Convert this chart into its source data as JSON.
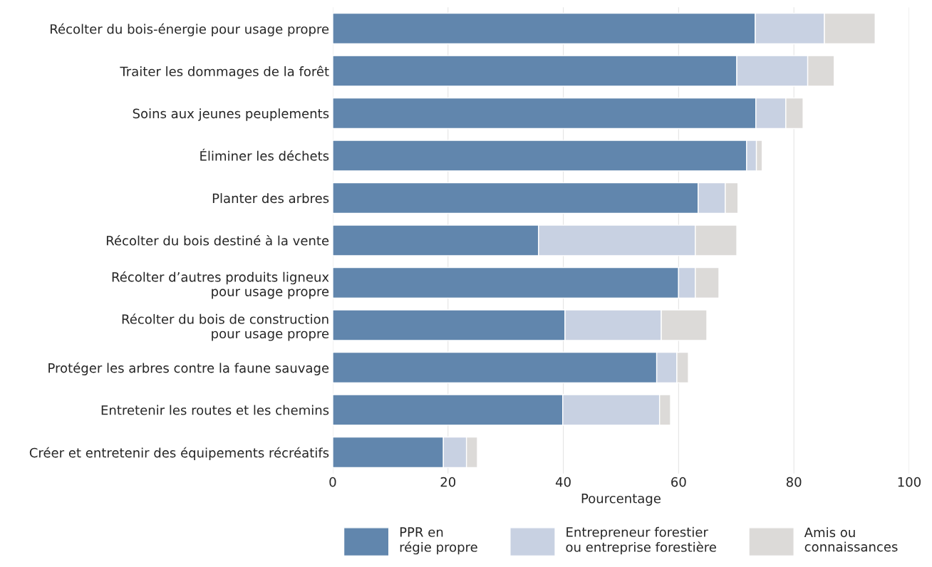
{
  "chart_data": {
    "type": "bar",
    "orientation": "horizontal",
    "stacked": true,
    "xlabel": "Pourcentage",
    "categories": [
      "Récolter du bois-énergie pour usage propre",
      "Traiter les dommages de la forêt",
      "Soins aux jeunes peuplements",
      "Éliminer les déchets",
      "Planter des arbres",
      "Récolter du bois destiné à la vente",
      "Récolter d’autres produits ligneux\npour usage propre",
      "Récolter du bois de construction\npour usage propre",
      "Protéger les arbres contre la faune sauvage",
      "Entretenir les routes et les chemins",
      "Créer et entretenir des équipements récréatifs"
    ],
    "series": [
      {
        "name": "PPR en\nrégie propre",
        "color": "#6186ad",
        "values": [
          73.3,
          70.1,
          73.4,
          71.8,
          63.4,
          35.7,
          60.0,
          40.3,
          56.2,
          39.9,
          19.2
        ]
      },
      {
        "name": "Entrepreneur forestier\nou entreprise forestière",
        "color": "#c8d1e2",
        "values": [
          12.0,
          12.3,
          5.2,
          1.7,
          4.7,
          27.2,
          2.9,
          16.7,
          3.5,
          16.8,
          4.0
        ]
      },
      {
        "name": "Amis ou\nconnaissances",
        "color": "#dcdad8",
        "values": [
          8.8,
          4.6,
          3.0,
          1.0,
          2.2,
          7.2,
          4.1,
          7.9,
          2.0,
          1.9,
          1.9
        ]
      }
    ],
    "xlim": [
      0,
      100
    ],
    "xticks": [
      0,
      20,
      40,
      60,
      80,
      100
    ],
    "grid": "x",
    "legend": "bottom"
  }
}
